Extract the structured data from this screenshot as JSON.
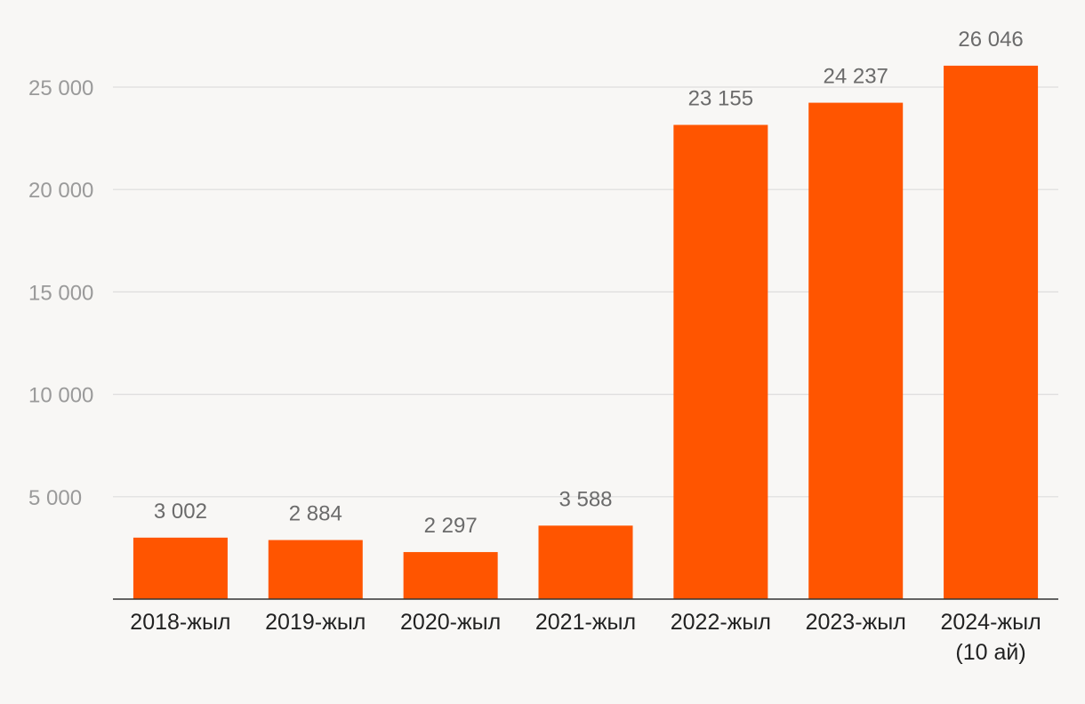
{
  "chart_data": {
    "type": "bar",
    "categories": [
      [
        "2018-жыл"
      ],
      [
        "2019-жыл"
      ],
      [
        "2020-жыл"
      ],
      [
        "2021-жыл"
      ],
      [
        "2022-жыл"
      ],
      [
        "2023-жыл"
      ],
      [
        "2024-жыл",
        "(10 ай)"
      ]
    ],
    "values": [
      3002,
      2884,
      2297,
      3588,
      23155,
      24237,
      26046
    ],
    "value_labels": [
      "3 002",
      "2 884",
      "2 297",
      "3 588",
      "23 155",
      "24 237",
      "26 046"
    ],
    "y_ticks": [
      5000,
      10000,
      15000,
      20000,
      25000
    ],
    "y_tick_labels": [
      "5 000",
      "10 000",
      "15 000",
      "20 000",
      "25 000"
    ],
    "ylim": [
      0,
      27000
    ],
    "grid": true,
    "bar_color": "#ff5500",
    "title": "",
    "xlabel": "",
    "ylabel": ""
  }
}
